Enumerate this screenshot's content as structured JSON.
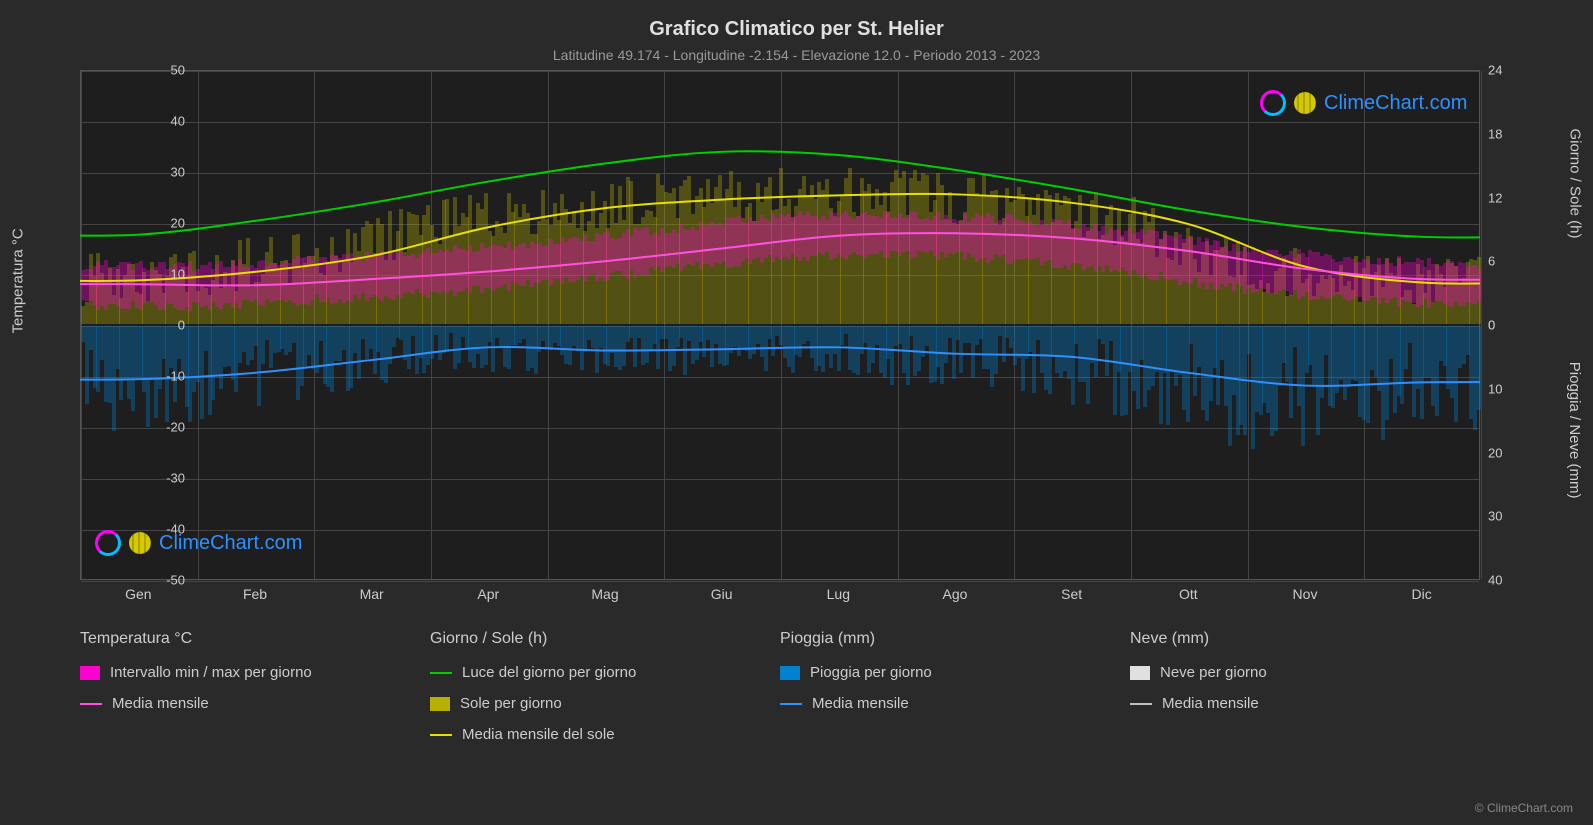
{
  "title": "Grafico Climatico per St. Helier",
  "subtitle": "Latitudine 49.174 - Longitudine -2.154 - Elevazione 12.0 - Periodo 2013 - 2023",
  "watermark_text": "ClimeChart.com",
  "copyright": "© ClimeChart.com",
  "chart": {
    "type": "multi-axis-line-area",
    "background_color": "#1e1e1e",
    "page_background": "#2a2a2a",
    "grid_color": "#444444",
    "text_color": "#cccccc",
    "title_fontsize": 20,
    "subtitle_fontsize": 14,
    "tick_fontsize": 13,
    "label_fontsize": 15,
    "y_left": {
      "label": "Temperatura °C",
      "min": -50,
      "max": 50,
      "ticks": [
        -50,
        -40,
        -30,
        -20,
        -10,
        0,
        10,
        20,
        30,
        40,
        50
      ]
    },
    "y_right_top": {
      "label": "Giorno / Sole (h)",
      "min": 0,
      "max": 24,
      "ticks": [
        0,
        6,
        12,
        18,
        24
      ]
    },
    "y_right_bottom": {
      "label": "Pioggia / Neve (mm)",
      "min": 0,
      "max": 40,
      "ticks": [
        0,
        10,
        20,
        30,
        40
      ]
    },
    "x": {
      "labels": [
        "Gen",
        "Feb",
        "Mar",
        "Apr",
        "Mag",
        "Giu",
        "Lug",
        "Ago",
        "Set",
        "Ott",
        "Nov",
        "Dic"
      ]
    },
    "series": {
      "daylight": {
        "label": "Luce del giorno per giorno",
        "color": "#00d000",
        "line_width": 2,
        "values_h": [
          8.5,
          9.8,
          11.5,
          13.5,
          15.2,
          16.3,
          16.0,
          14.6,
          12.8,
          10.8,
          9.2,
          8.3
        ]
      },
      "sun_monthly": {
        "label": "Media mensile del sole",
        "color": "#e8e000",
        "line_width": 2,
        "values_h": [
          4.2,
          5.0,
          6.5,
          9.2,
          11.0,
          11.8,
          12.2,
          12.3,
          11.5,
          9.5,
          5.5,
          4.0
        ]
      },
      "temp_monthly": {
        "label": "Media mensile",
        "color": "#ff50e0",
        "line_width": 2,
        "values_c": [
          8.0,
          7.8,
          9.0,
          10.5,
          12.5,
          15.0,
          17.5,
          18.0,
          17.0,
          14.5,
          11.0,
          9.0
        ]
      },
      "rain_monthly": {
        "label": "Media mensile",
        "color": "#3090ff",
        "line_width": 2,
        "values_mm": [
          8.5,
          7.5,
          5.5,
          3.5,
          4.0,
          3.8,
          3.5,
          4.5,
          5.0,
          7.5,
          9.5,
          9.0
        ]
      },
      "temp_range": {
        "label": "Intervallo min / max per giorno",
        "color": "#ff00d0",
        "opacity": 0.35
      },
      "sun_daily": {
        "label": "Sole per giorno",
        "color": "#b8b000",
        "opacity": 0.35
      },
      "rain_daily": {
        "label": "Pioggia per giorno",
        "color": "#0080d0",
        "opacity": 0.35
      },
      "snow_daily": {
        "label": "Neve per giorno",
        "color": "#e0e0e0",
        "opacity": 0.5
      },
      "snow_monthly": {
        "label": "Media mensile",
        "color": "#c0c0c0"
      }
    }
  },
  "legend": {
    "groups": [
      {
        "header": "Temperatura °C",
        "items": [
          {
            "type": "swatch",
            "key": "temp_range"
          },
          {
            "type": "line",
            "key": "temp_monthly"
          }
        ]
      },
      {
        "header": "Giorno / Sole (h)",
        "items": [
          {
            "type": "line",
            "key": "daylight"
          },
          {
            "type": "swatch",
            "key": "sun_daily"
          },
          {
            "type": "line",
            "key": "sun_monthly"
          }
        ]
      },
      {
        "header": "Pioggia (mm)",
        "items": [
          {
            "type": "swatch",
            "key": "rain_daily"
          },
          {
            "type": "line",
            "key": "rain_monthly"
          }
        ]
      },
      {
        "header": "Neve (mm)",
        "items": [
          {
            "type": "swatch",
            "key": "snow_daily"
          },
          {
            "type": "line",
            "key": "snow_monthly"
          }
        ]
      }
    ]
  }
}
